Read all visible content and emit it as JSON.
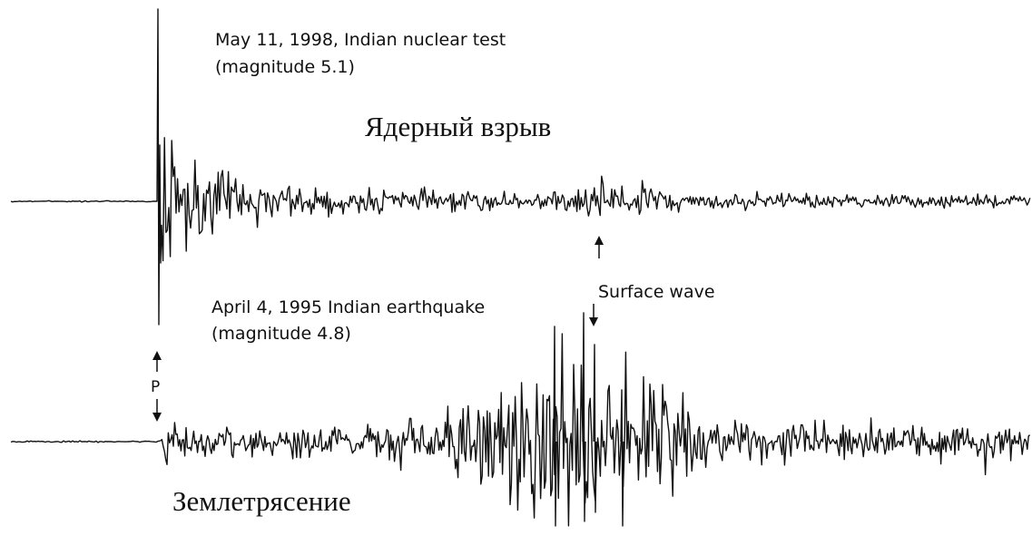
{
  "traces": [
    {
      "caption": "May 11, 1998, Indian nuclear test",
      "magnitude": "(magnitude 5.1)",
      "label": "Ядерный взрыв"
    },
    {
      "caption": "April 4, 1995 Indian earthquake",
      "magnitude": "(magnitude 4.8)",
      "label": "Землетрясение"
    }
  ],
  "annotations": {
    "surface_wave": "Surface wave",
    "p_wave": "P"
  }
}
